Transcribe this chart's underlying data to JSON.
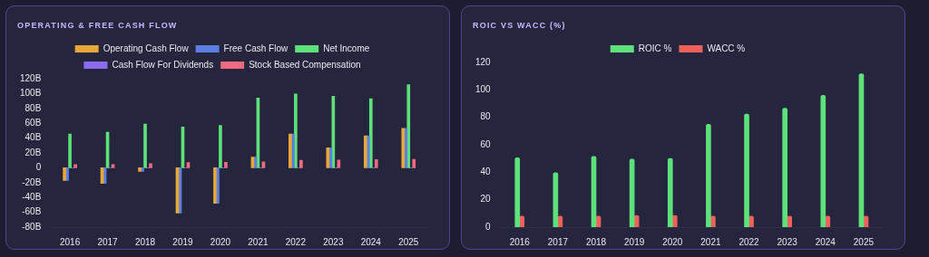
{
  "chart_data": [
    {
      "type": "bar",
      "title": "OPERATING & FREE CASH FLOW",
      "categories": [
        "2016",
        "2017",
        "2018",
        "2019",
        "2020",
        "2021",
        "2022",
        "2023",
        "2024",
        "2025"
      ],
      "series": [
        {
          "name": "Operating Cash Flow",
          "color": "#e8a838",
          "values": [
            -17,
            -21,
            -5,
            -61,
            -48,
            14.5,
            45.5,
            27,
            43,
            53
          ]
        },
        {
          "name": "Free Cash Flow",
          "color": "#5b7fe0",
          "values": [
            -17,
            -21,
            -5,
            -61,
            -48,
            14.5,
            45.5,
            27,
            43,
            53
          ]
        },
        {
          "name": "Net Income",
          "color": "#5ee07a",
          "values": [
            45.5,
            48,
            59,
            55,
            57,
            94,
            99.5,
            96.5,
            93,
            112
          ]
        },
        {
          "name": "Cash Flow For Dividends",
          "color": "#8b6cf0",
          "values": [
            0,
            0,
            0,
            0,
            0,
            0,
            0,
            0,
            0,
            0
          ]
        },
        {
          "name": "Stock Based Compensation",
          "color": "#f06a80",
          "values": [
            4.4,
            4.5,
            5.5,
            7,
            7.5,
            8,
            10,
            10.5,
            11,
            11.5
          ]
        }
      ],
      "ylim": [
        -80,
        120
      ],
      "yticks": [
        {
          "value": -80,
          "label": "-80B"
        },
        {
          "value": -60,
          "label": "-60B"
        },
        {
          "value": -40,
          "label": "-40B"
        },
        {
          "value": -20,
          "label": "-20B"
        },
        0,
        {
          "value": 20,
          "label": "20B"
        },
        {
          "value": 40,
          "label": "40B"
        },
        {
          "value": 60,
          "label": "60B"
        },
        {
          "value": 80,
          "label": "80B"
        },
        {
          "value": 100,
          "label": "100B"
        },
        {
          "value": 120,
          "label": "120B"
        }
      ],
      "grid": false,
      "legend": "top"
    },
    {
      "type": "bar",
      "title": "ROIC VS WACC (%)",
      "categories": [
        "2016",
        "2017",
        "2018",
        "2019",
        "2020",
        "2021",
        "2022",
        "2023",
        "2024",
        "2025"
      ],
      "series": [
        {
          "name": "ROIC %",
          "color": "#5ee07a",
          "values": [
            50.6,
            39.6,
            51.5,
            49.5,
            50,
            75,
            82.4,
            86.7,
            96,
            111.7
          ]
        },
        {
          "name": "WACC %",
          "color": "#f0605a",
          "values": [
            8.1,
            8.1,
            8.1,
            8.5,
            8.5,
            8.1,
            8.1,
            8.1,
            8.1,
            8.1
          ]
        }
      ],
      "ylim": [
        0,
        120
      ],
      "yticks": [
        0,
        20,
        40,
        60,
        80,
        100,
        120
      ],
      "grid": false,
      "legend": "top"
    }
  ]
}
